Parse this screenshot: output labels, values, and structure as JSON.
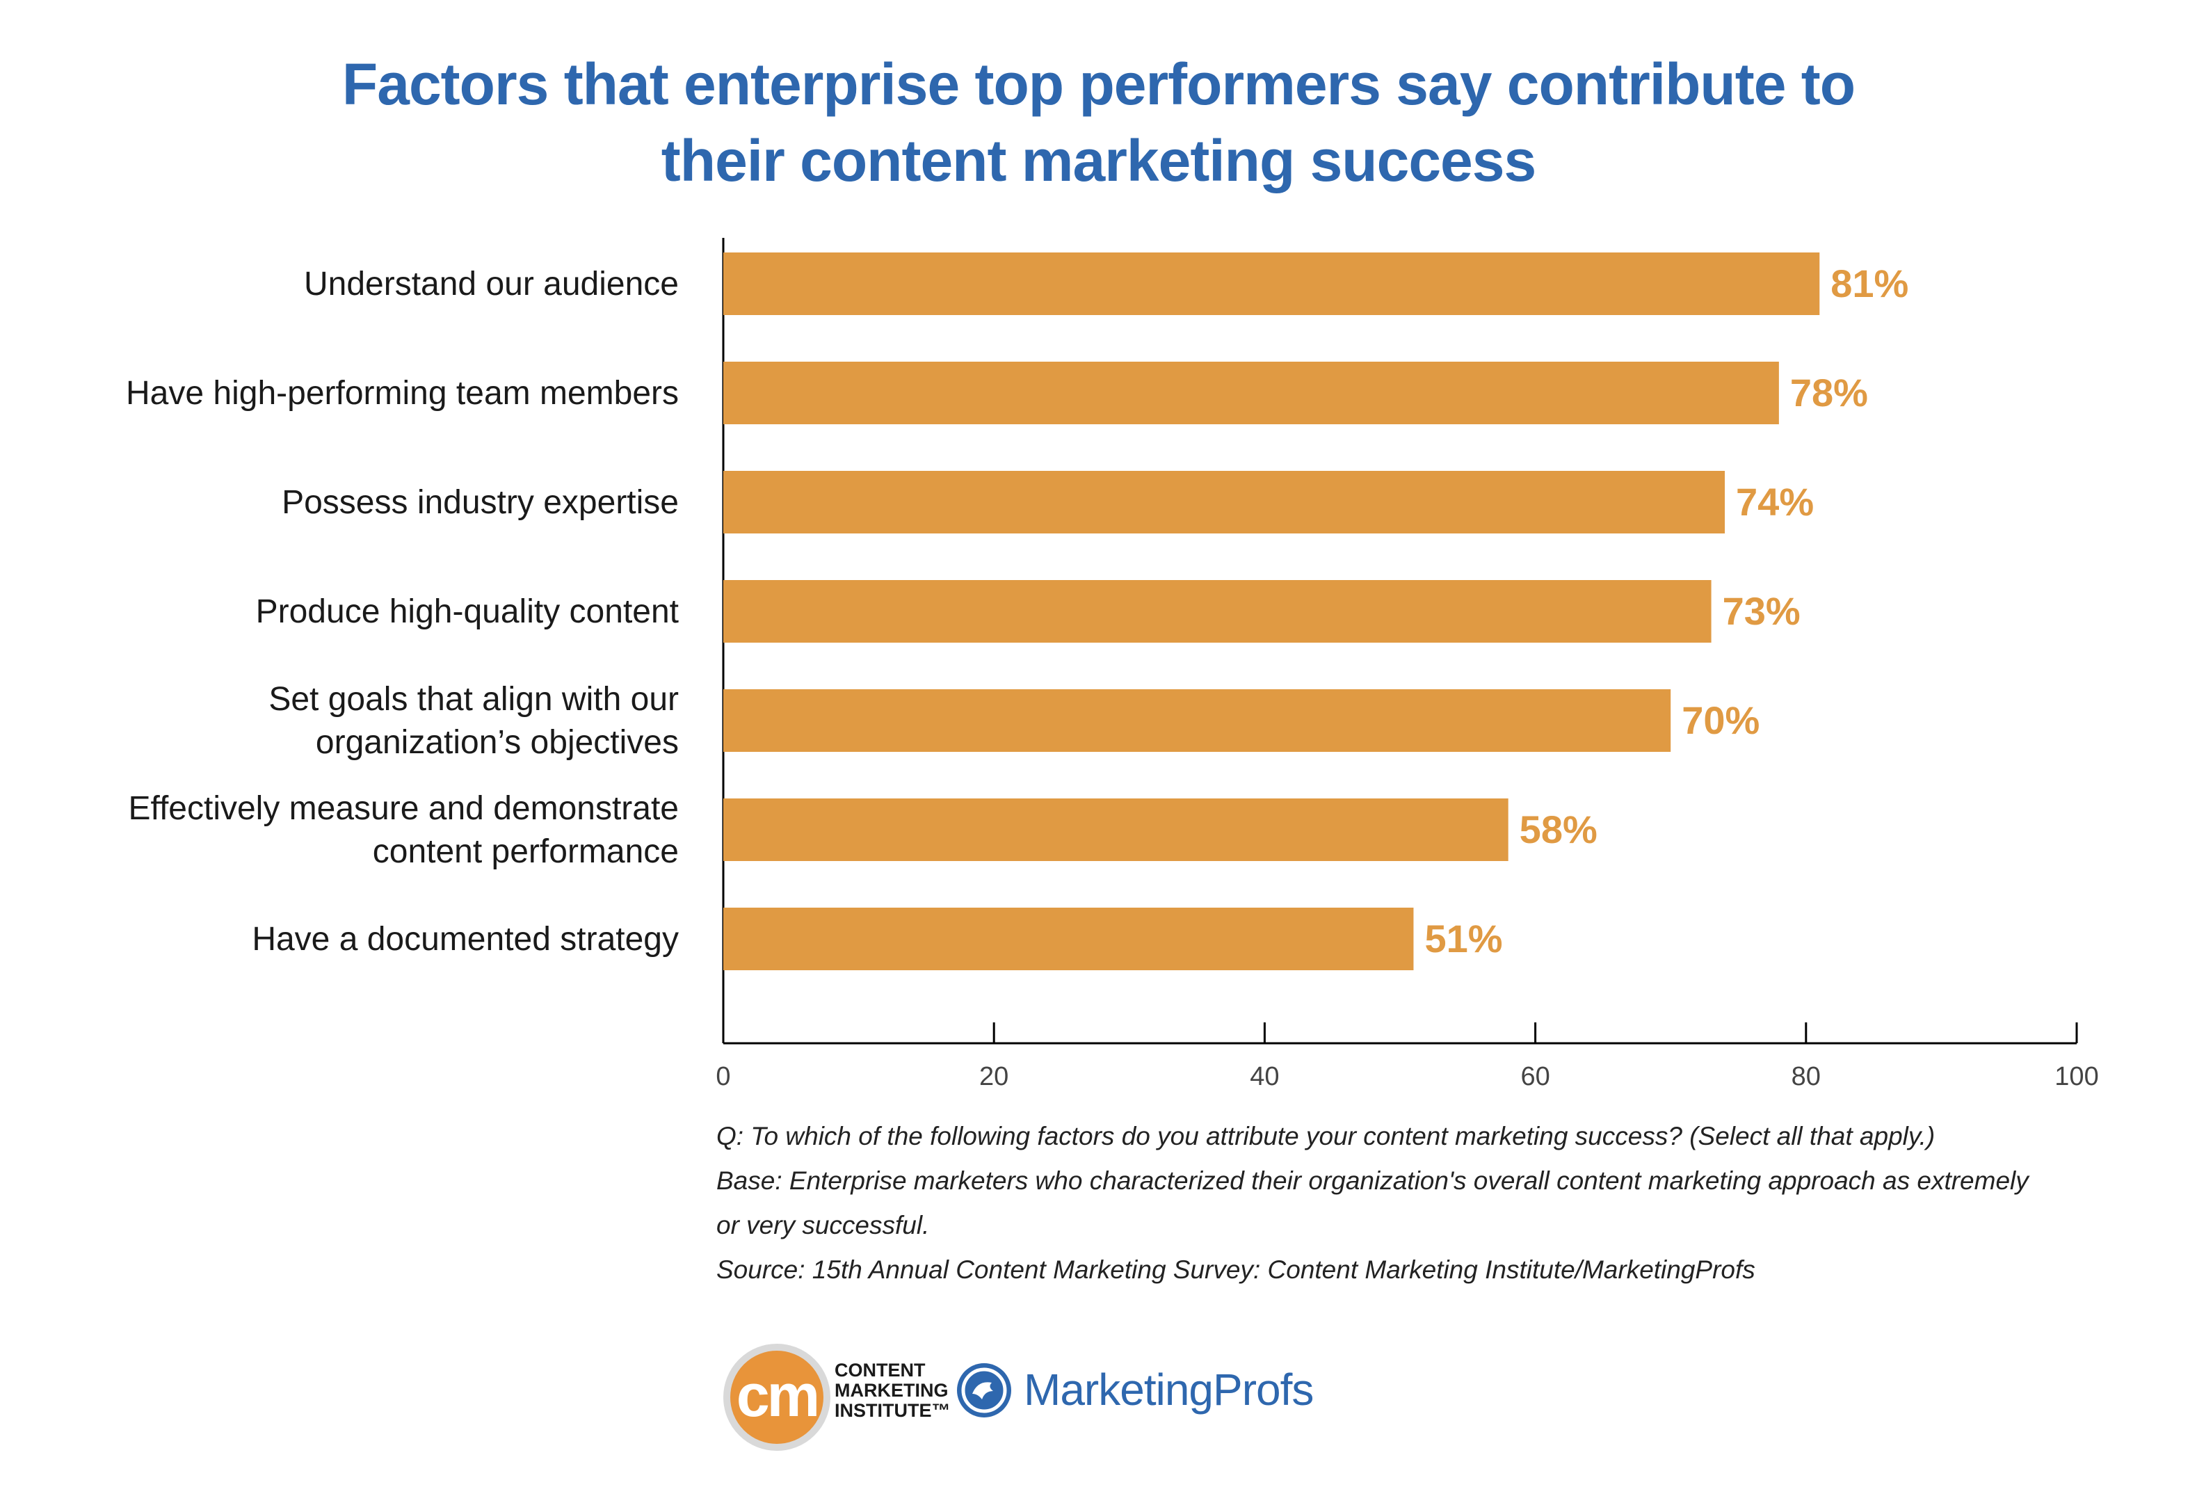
{
  "title_lines": [
    "Factors that enterprise top performers say contribute to",
    "their content marketing success"
  ],
  "chart_data": {
    "type": "bar",
    "orientation": "horizontal",
    "categories": [
      [
        "Understand our audience"
      ],
      [
        "Have high-performing team members"
      ],
      [
        "Possess industry expertise"
      ],
      [
        "Produce high-quality content"
      ],
      [
        "Set goals that align with our",
        "organization’s objectives"
      ],
      [
        "Effectively measure and demonstrate",
        "content performance"
      ],
      [
        "Have a documented strategy"
      ]
    ],
    "values": [
      81,
      78,
      74,
      73,
      70,
      58,
      51
    ],
    "value_labels": [
      "81%",
      "78%",
      "74%",
      "73%",
      "70%",
      "58%",
      "51%"
    ],
    "xlim": [
      0,
      100
    ],
    "xticks": [
      0,
      20,
      40,
      60,
      80,
      100
    ],
    "bar_color": "#e09a43",
    "label_color": "#e09a43",
    "grid": false
  },
  "notes": {
    "question": "Q: To which of the following factors do you attribute your content marketing success? (Select all that apply.)",
    "base_line1": "Base: Enterprise marketers who characterized their organization's overall content marketing approach as extremely",
    "base_line2": "or very successful.",
    "source": "Source: 15th Annual Content Marketing Survey: Content Marketing Institute/MarketingProfs"
  },
  "logos": {
    "cmi_mark": "cm",
    "cmi_line1": "CONTENT",
    "cmi_line2": "MARKETING",
    "cmi_line3": "INSTITUTE™",
    "mp_name": "MarketingProfs"
  },
  "colors": {
    "title": "#2e67ae",
    "bar": "#e09a43",
    "cmi_orange": "#e8943a",
    "mp_blue": "#2e67ae"
  }
}
